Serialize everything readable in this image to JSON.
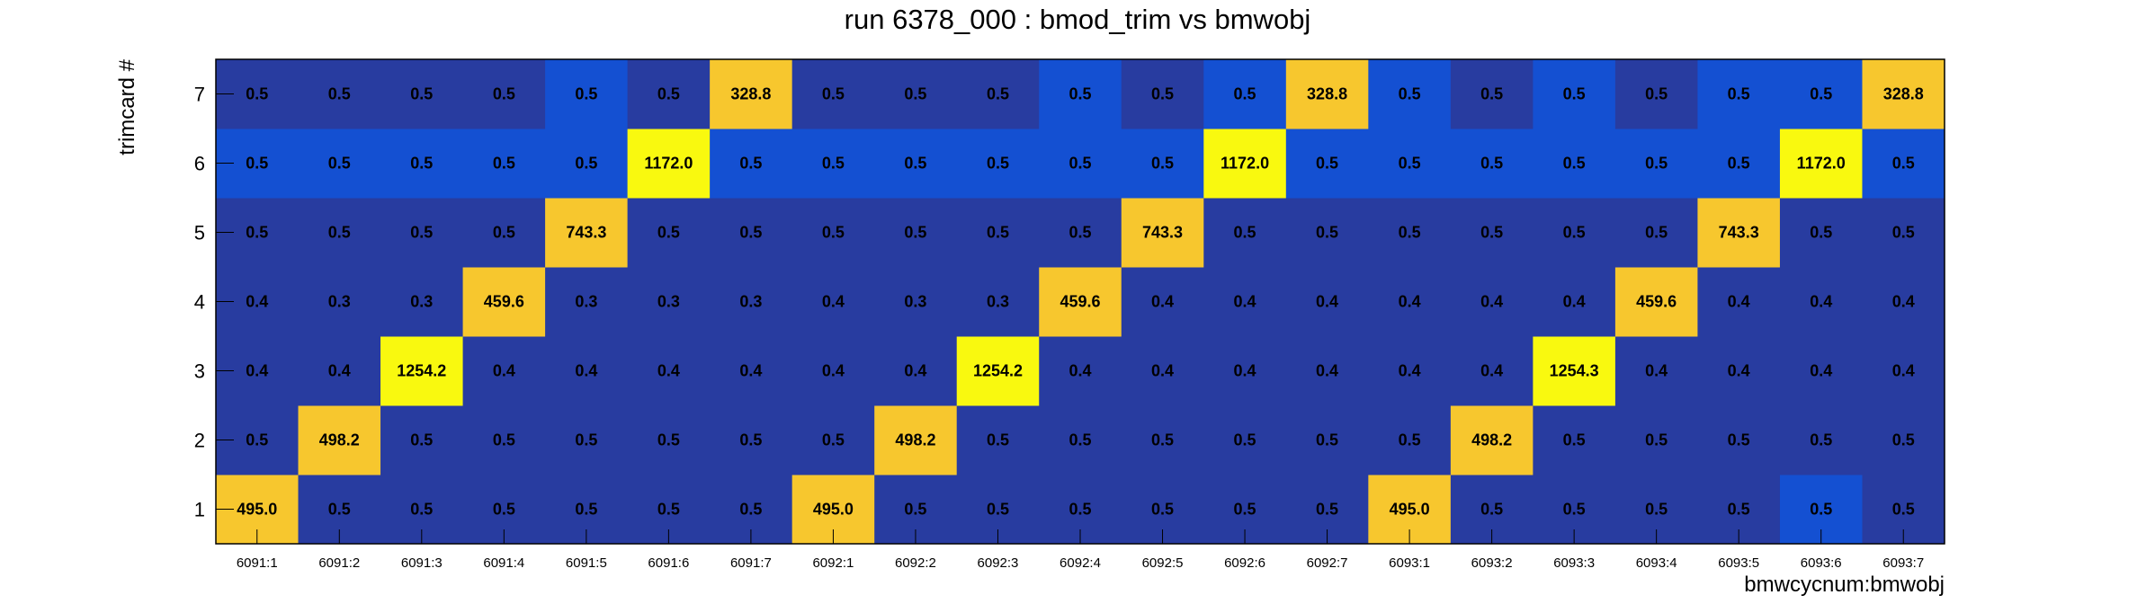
{
  "chart_data": {
    "type": "heatmap",
    "title": "run 6378_000 : bmod_trim vs bmwobj",
    "xlabel": "bmwcycnum:bmwobj",
    "ylabel": "trimcard #",
    "x_categories": [
      "6091:1",
      "6091:2",
      "6091:3",
      "6091:4",
      "6091:5",
      "6091:6",
      "6091:7",
      "6092:1",
      "6092:2",
      "6092:3",
      "6092:4",
      "6092:5",
      "6092:6",
      "6092:7",
      "6093:1",
      "6093:2",
      "6093:3",
      "6093:4",
      "6093:5",
      "6093:6",
      "6093:7"
    ],
    "y_categories": [
      "1",
      "2",
      "3",
      "4",
      "5",
      "6",
      "7"
    ],
    "values_labels": [
      [
        "495.0",
        "0.5",
        "0.5",
        "0.5",
        "0.5",
        "0.5",
        "0.5",
        "495.0",
        "0.5",
        "0.5",
        "0.5",
        "0.5",
        "0.5",
        "0.5",
        "495.0",
        "0.5",
        "0.5",
        "0.5",
        "0.5",
        "0.5",
        "0.5"
      ],
      [
        "0.5",
        "498.2",
        "0.5",
        "0.5",
        "0.5",
        "0.5",
        "0.5",
        "0.5",
        "498.2",
        "0.5",
        "0.5",
        "0.5",
        "0.5",
        "0.5",
        "0.5",
        "498.2",
        "0.5",
        "0.5",
        "0.5",
        "0.5",
        "0.5"
      ],
      [
        "0.4",
        "0.4",
        "1254.2",
        "0.4",
        "0.4",
        "0.4",
        "0.4",
        "0.4",
        "0.4",
        "1254.2",
        "0.4",
        "0.4",
        "0.4",
        "0.4",
        "0.4",
        "0.4",
        "1254.3",
        "0.4",
        "0.4",
        "0.4",
        "0.4"
      ],
      [
        "0.4",
        "0.3",
        "0.3",
        "459.6",
        "0.3",
        "0.3",
        "0.3",
        "0.4",
        "0.3",
        "0.3",
        "459.6",
        "0.4",
        "0.4",
        "0.4",
        "0.4",
        "0.4",
        "0.4",
        "459.6",
        "0.4",
        "0.4",
        "0.4"
      ],
      [
        "0.5",
        "0.5",
        "0.5",
        "0.5",
        "743.3",
        "0.5",
        "0.5",
        "0.5",
        "0.5",
        "0.5",
        "0.5",
        "743.3",
        "0.5",
        "0.5",
        "0.5",
        "0.5",
        "0.5",
        "0.5",
        "743.3",
        "0.5",
        "0.5"
      ],
      [
        "0.5",
        "0.5",
        "0.5",
        "0.5",
        "0.5",
        "1172.0",
        "0.5",
        "0.5",
        "0.5",
        "0.5",
        "0.5",
        "0.5",
        "1172.0",
        "0.5",
        "0.5",
        "0.5",
        "0.5",
        "0.5",
        "0.5",
        "1172.0",
        "0.5"
      ],
      [
        "0.5",
        "0.5",
        "0.5",
        "0.5",
        "0.5",
        "0.5",
        "328.8",
        "0.5",
        "0.5",
        "0.5",
        "0.5",
        "0.5",
        "0.5",
        "328.8",
        "0.5",
        "0.5",
        "0.5",
        "0.5",
        "0.5",
        "0.5",
        "328.8"
      ]
    ],
    "colors": {
      "low": "#283ca0",
      "low_alt": "#1450d2",
      "high": "#f7c72e",
      "max": "#f9f90f"
    },
    "grid": false,
    "legend": "none"
  }
}
